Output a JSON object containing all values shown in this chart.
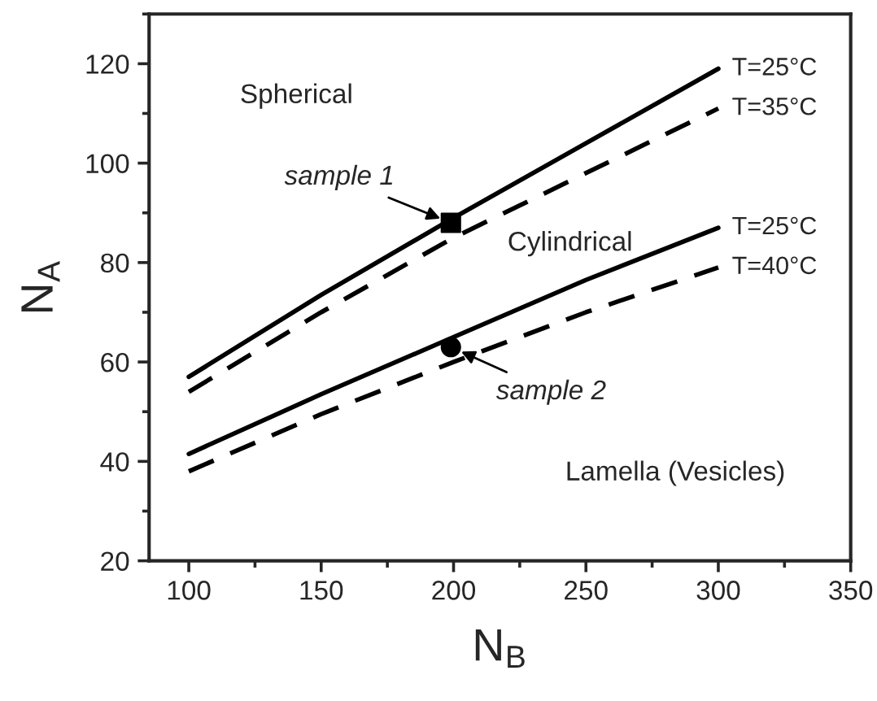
{
  "chart_data": {
    "type": "line",
    "xlabel": "N$_{B}$",
    "ylabel": "N$_{A}$",
    "xlim": [
      85,
      350
    ],
    "ylim": [
      20,
      130
    ],
    "xticks": [
      100,
      150,
      200,
      250,
      300,
      350
    ],
    "yticks": [
      20,
      40,
      60,
      80,
      100,
      120
    ],
    "grid": false,
    "legend": false,
    "series": [
      {
        "name": "T=25°C",
        "color": "#000000",
        "line_style": "solid",
        "x": [
          100,
          150,
          200,
          250,
          300
        ],
        "values": [
          57,
          73.5,
          89,
          104,
          119
        ]
      },
      {
        "name": "T=35°C",
        "color": "#000000",
        "line_style": "dashed",
        "x": [
          100,
          150,
          200,
          250,
          300
        ],
        "values": [
          54,
          70,
          85,
          98,
          111
        ]
      },
      {
        "name": "T=25°C",
        "color": "#000000",
        "line_style": "solid",
        "x": [
          100,
          150,
          200,
          250,
          300
        ],
        "values": [
          41.5,
          53.5,
          65,
          76.5,
          87
        ]
      },
      {
        "name": "T=40°C",
        "color": "#000000",
        "line_style": "dashed",
        "x": [
          100,
          150,
          200,
          250,
          300
        ],
        "values": [
          38,
          49.5,
          60,
          70,
          79
        ]
      },
      {
        "type": "scatter",
        "marker": "square",
        "color": "#000000",
        "x": [
          199
        ],
        "values": [
          88
        ]
      },
      {
        "type": "scatter",
        "marker": "circle",
        "color": "#000000",
        "x": [
          199
        ],
        "values": [
          63
        ]
      }
    ],
    "annotations": [
      "Spherical",
      "Cylindrical",
      "Lamella (Vesicles)",
      {
        "text": "sample 1",
        "x": 199,
        "y": 88
      },
      {
        "text": "sample 2",
        "x": 199,
        "y": 63
      }
    ]
  }
}
